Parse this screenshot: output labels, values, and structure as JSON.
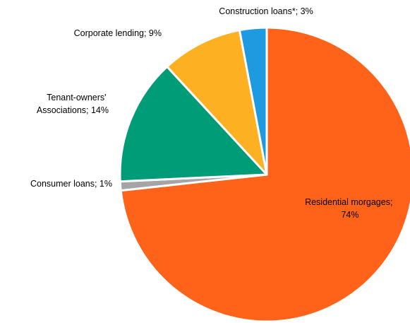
{
  "chart_data": {
    "type": "pie",
    "title": "",
    "slices": [
      {
        "name": "Residential morgages",
        "value": 74,
        "value_label": "74%",
        "color": "#FF6319",
        "label_lines": [
          "Residential morgages;",
          "74%"
        ]
      },
      {
        "name": "Consumer loans",
        "value": 1,
        "value_label": "1%",
        "color": "#A5A5A5",
        "label_lines": [
          "Consumer loans; 1%"
        ]
      },
      {
        "name": "Tenant-owners' Associations",
        "value": 14,
        "value_label": "14%",
        "color": "#009B77",
        "label_lines": [
          "Tenant-owners'",
          "Associations; 14%"
        ]
      },
      {
        "name": "Corporate lending",
        "value": 9,
        "value_label": "9%",
        "color": "#FDB022",
        "label_lines": [
          "Corporate lending; 9%"
        ]
      },
      {
        "name": "Construction loans*",
        "value": 3,
        "value_label": "3%",
        "color": "#1E9BE0",
        "label_lines": [
          "Construction loans*; 3%"
        ]
      }
    ],
    "start": "12 o'clock",
    "direction": "clockwise",
    "legend": "none"
  }
}
